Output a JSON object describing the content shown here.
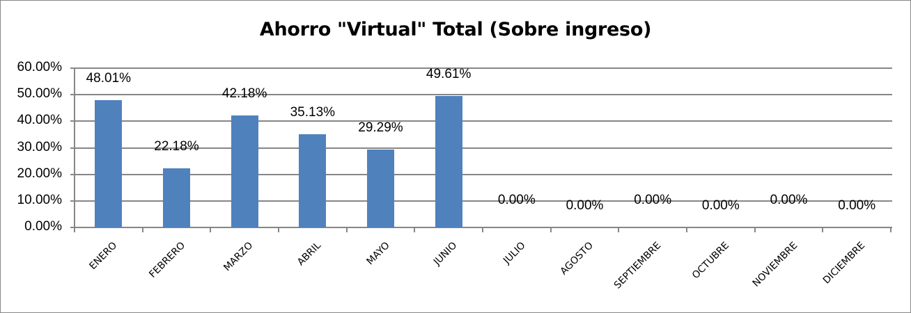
{
  "chart_data": {
    "type": "bar",
    "title": "Ahorro \"Virtual\" Total (Sobre ingreso)",
    "xlabel": "",
    "ylabel": "",
    "ylim": [
      0,
      0.6
    ],
    "grid": true,
    "legend": "none",
    "y_ticks": [
      "0.00%",
      "10.00%",
      "20.00%",
      "30.00%",
      "40.00%",
      "50.00%",
      "60.00%"
    ],
    "categories": [
      "ENERO",
      "FEBRERO",
      "MARZO",
      "ABRIL",
      "MAYO",
      "JUNIO",
      "JULIO",
      "AGOSTO",
      "SEPTIEMBRE",
      "OCTUBRE",
      "NOVIEMBRE",
      "DICIEMBRE"
    ],
    "values": [
      0.4801,
      0.2218,
      0.4218,
      0.3513,
      0.2929,
      0.4961,
      0,
      0,
      0,
      0,
      0,
      0
    ],
    "data_labels": [
      "48.01%",
      "22.18%",
      "42.18%",
      "35.13%",
      "29.29%",
      "49.61%",
      "0.00%",
      "0.00%",
      "0.00%",
      "0.00%",
      "0.00%",
      "0.00%"
    ],
    "colors": {
      "bar": "#4F81BD",
      "grid": "#868686",
      "border": "#868686"
    }
  }
}
